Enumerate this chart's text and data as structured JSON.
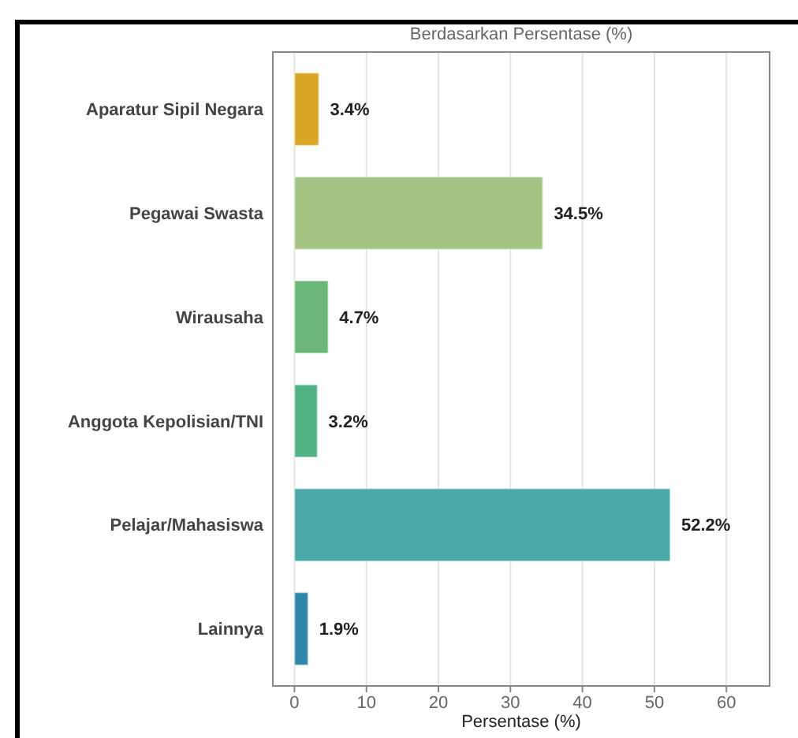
{
  "chart_data": {
    "type": "bar",
    "orientation": "horizontal",
    "title": "Berdasarkan Persentase (%)",
    "xlabel": "Persentase (%)",
    "categories": [
      "Aparatur Sipil Negara",
      "Pegawai Swasta",
      "Wirausaha",
      "Anggota Kepolisian/TNI",
      "Pelajar/Mahasiswa",
      "Lainnya"
    ],
    "values": [
      3.4,
      34.5,
      4.7,
      3.2,
      52.2,
      1.9
    ],
    "colors": [
      "#dba526",
      "#a3c482",
      "#6cb87a",
      "#52b285",
      "#4aa9a6",
      "#2e86a8"
    ],
    "value_labels": [
      "3.4%",
      "34.5%",
      "4.7%",
      "3.2%",
      "52.2%",
      "1.9%"
    ],
    "xlim": [
      -3,
      66
    ],
    "xticks": [
      0,
      10,
      20,
      30,
      40,
      50,
      60
    ],
    "grid": "x"
  }
}
